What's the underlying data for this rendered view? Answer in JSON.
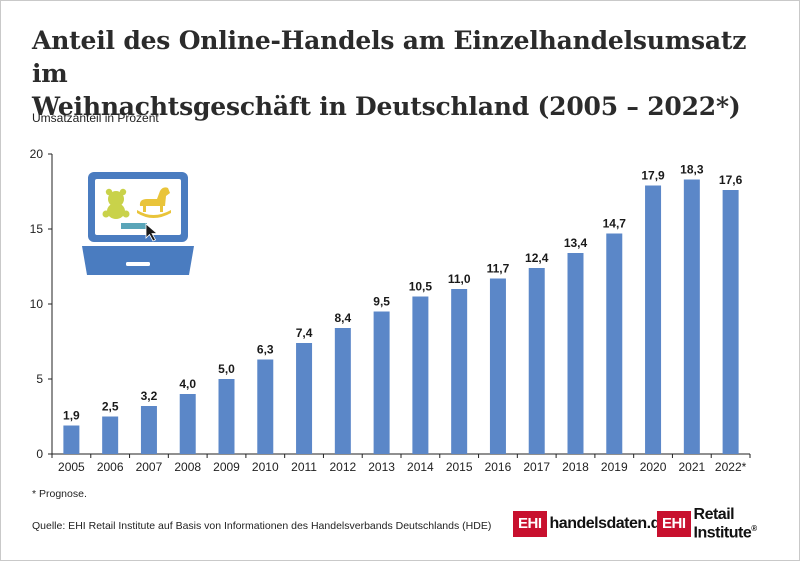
{
  "title_line1": "Anteil des Online-Handels am Einzelhandelsumsatz im",
  "title_line2": "Weihnachtsgeschäft in Deutschland  (2005 – 2022*)",
  "note": "* Prognose.",
  "source": "Quelle: EHI Retail Institute auf Basis von Informationen des Handelsverbands Deutschlands (HDE)",
  "logos": {
    "logo1_box": "EHI",
    "logo1_text": "handelsdaten.de",
    "logo2_box": "EHI",
    "logo2_text": "Retail Institute",
    "logo2_reg": "®"
  },
  "colors": {
    "bar": "#5b87c8",
    "logo_red": "#c8102e",
    "laptop": "#4a7cc0"
  },
  "chart_data": {
    "type": "bar",
    "title": "Anteil des Online-Handels am Einzelhandelsumsatz im Weihnachtsgeschäft in Deutschland (2005 – 2022*)",
    "ylabel": "Umsatzanteil in Prozent",
    "xlabel": "",
    "ylim": [
      0,
      20
    ],
    "yticks": [
      0,
      5,
      10,
      15,
      20
    ],
    "grid": false,
    "categories": [
      "2005",
      "2006",
      "2007",
      "2008",
      "2009",
      "2010",
      "2011",
      "2012",
      "2013",
      "2014",
      "2015",
      "2016",
      "2017",
      "2018",
      "2019",
      "2020",
      "2021",
      "2022*"
    ],
    "values": [
      1.9,
      2.5,
      3.2,
      4.0,
      5.0,
      6.3,
      7.4,
      8.4,
      9.5,
      10.5,
      11.0,
      11.7,
      12.4,
      13.4,
      14.7,
      17.9,
      18.3,
      17.6
    ],
    "labels": [
      "1,9",
      "2,5",
      "3,2",
      "4,0",
      "5,0",
      "6,3",
      "7,4",
      "8,4",
      "9,5",
      "10,5",
      "11,0",
      "11,7",
      "12,4",
      "13,4",
      "14,7",
      "17,9",
      "18,3",
      "17,6"
    ]
  }
}
